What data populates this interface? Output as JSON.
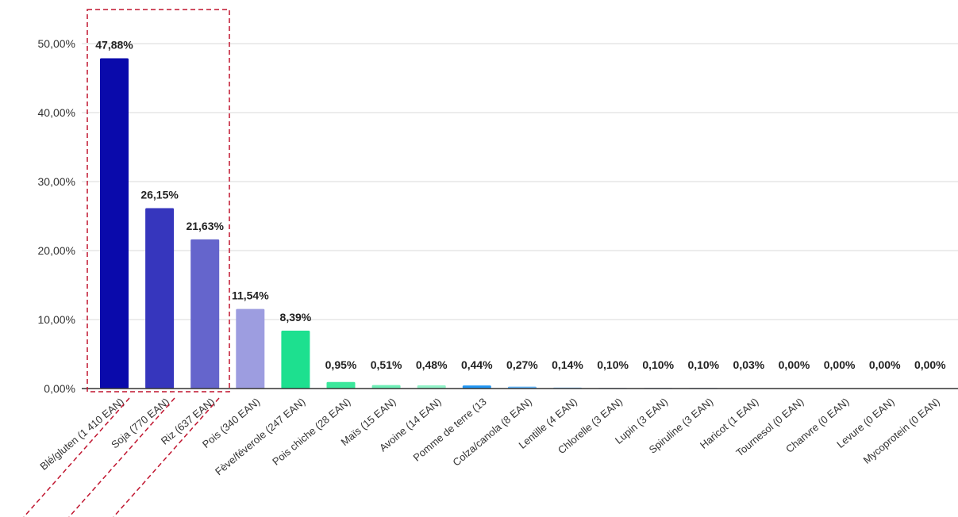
{
  "chart_data": {
    "type": "bar",
    "categories": [
      "Blé/gluten (1 410 EAN)",
      "Soja (770 EAN)",
      "Riz (637 EAN)",
      "Pois (340 EAN)",
      "Fève/féverole (247 EAN)",
      "Pois chiche (28 EAN)",
      "Maïs (15 EAN)",
      "Avoine (14 EAN)",
      "Pomme de terre (13",
      "Colza/canola (8 EAN)",
      "Lentille (4 EAN)",
      "Chlorelle (3 EAN)",
      "Lupin (3 EAN)",
      "Spiruline (3 EAN)",
      "Haricot (1 EAN)",
      "Tournesol (0 EAN)",
      "Chanvre (0 EAN)",
      "Levure (0 EAN)",
      "Mycoprotein (0 EAN)"
    ],
    "values": [
      47.88,
      26.15,
      21.63,
      11.54,
      8.39,
      0.95,
      0.51,
      0.48,
      0.44,
      0.27,
      0.14,
      0.1,
      0.1,
      0.1,
      0.03,
      0.0,
      0.0,
      0.0,
      0.0
    ],
    "value_labels": [
      "47,88%",
      "26,15%",
      "21,63%",
      "11,54%",
      "8,39%",
      "0,95%",
      "0,51%",
      "0,48%",
      "0,44%",
      "0,27%",
      "0,14%",
      "0,10%",
      "0,10%",
      "0,10%",
      "0,03%",
      "0,00%",
      "0,00%",
      "0,00%",
      "0,00%"
    ],
    "colors": [
      "#0a0aab",
      "#3636bd",
      "#6565cc",
      "#9d9de0",
      "#1de08f",
      "#3be79b",
      "#6eeeb6",
      "#92f2c8",
      "#2196f3",
      "#64b5f6",
      "#90caf9",
      "#c5cae9",
      "#c5cae9",
      "#c5cae9",
      "#c5cae9",
      "#c5cae9",
      "#c5cae9",
      "#c5cae9",
      "#c5cae9"
    ],
    "yticks": [
      "0,00%",
      "10,00%",
      "20,00%",
      "30,00%",
      "40,00%",
      "50,00%"
    ],
    "ylim": [
      0,
      50
    ],
    "grid": true,
    "highlight": {
      "first_index": 0,
      "last_index": 2,
      "style": "dashed-box",
      "color": "#c0152f"
    }
  }
}
